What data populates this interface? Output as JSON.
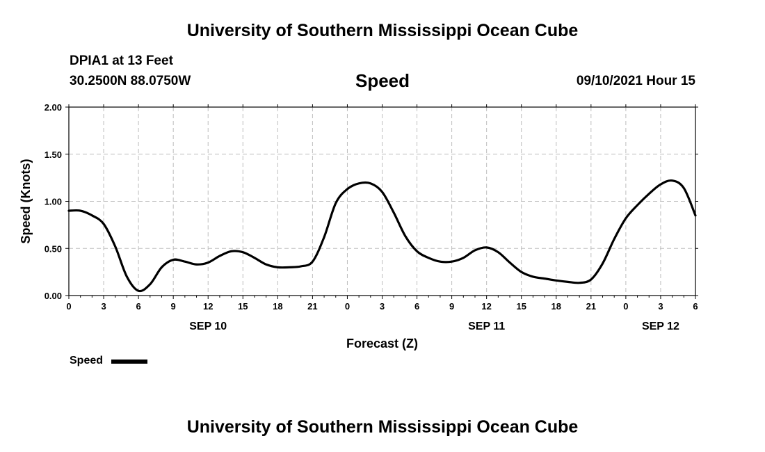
{
  "header": {
    "title_top": "University of Southern Mississippi Ocean Cube",
    "station": "DPIA1 at 13 Feet",
    "coords": "30.2500N  88.0750W",
    "variable": "Speed",
    "issued": "09/10/2021 Hour 15"
  },
  "footer": {
    "title_bottom": "University of Southern Mississippi Ocean Cube"
  },
  "legend": {
    "label": "Speed",
    "color": "#000000"
  },
  "chart_data": {
    "type": "line",
    "title": "Speed",
    "xlabel": "Forecast (Z)",
    "ylabel": "Speed (Knots)",
    "ylim": [
      0,
      2
    ],
    "xlim_hours": [
      0,
      54
    ],
    "grid": true,
    "legend_position": "bottom-left",
    "y_ticks": [
      "0.00",
      "0.50",
      "1.00",
      "1.50",
      "2.00"
    ],
    "y_tick_values": [
      0,
      0.5,
      1.0,
      1.5,
      2.0
    ],
    "x_ticks": [
      {
        "hour": 0,
        "label": "0"
      },
      {
        "hour": 3,
        "label": "3"
      },
      {
        "hour": 6,
        "label": "6"
      },
      {
        "hour": 9,
        "label": "9"
      },
      {
        "hour": 12,
        "label": "12"
      },
      {
        "hour": 15,
        "label": "15"
      },
      {
        "hour": 18,
        "label": "18"
      },
      {
        "hour": 21,
        "label": "21"
      },
      {
        "hour": 24,
        "label": "0"
      },
      {
        "hour": 27,
        "label": "3"
      },
      {
        "hour": 30,
        "label": "6"
      },
      {
        "hour": 33,
        "label": "9"
      },
      {
        "hour": 36,
        "label": "12"
      },
      {
        "hour": 39,
        "label": "15"
      },
      {
        "hour": 42,
        "label": "18"
      },
      {
        "hour": 45,
        "label": "21"
      },
      {
        "hour": 48,
        "label": "0"
      },
      {
        "hour": 51,
        "label": "3"
      },
      {
        "hour": 54,
        "label": "6"
      }
    ],
    "day_labels": [
      {
        "hour": 12,
        "label": "SEP 10"
      },
      {
        "hour": 36,
        "label": "SEP 11"
      },
      {
        "hour": 51,
        "label": "SEP 12"
      }
    ],
    "series": [
      {
        "name": "Speed",
        "color": "#000000",
        "x": [
          0,
          1,
          2,
          3,
          4,
          5,
          6,
          7,
          8,
          9,
          10,
          11,
          12,
          13,
          14,
          15,
          16,
          17,
          18,
          19,
          20,
          21,
          22,
          23,
          24,
          25,
          26,
          27,
          28,
          29,
          30,
          31,
          32,
          33,
          34,
          35,
          36,
          37,
          38,
          39,
          40,
          41,
          42,
          43,
          44,
          45,
          46,
          47,
          48,
          49,
          50,
          51,
          52,
          53,
          54
        ],
        "values": [
          0.9,
          0.9,
          0.85,
          0.76,
          0.52,
          0.2,
          0.05,
          0.12,
          0.3,
          0.38,
          0.36,
          0.33,
          0.35,
          0.42,
          0.47,
          0.46,
          0.4,
          0.33,
          0.3,
          0.3,
          0.31,
          0.36,
          0.62,
          0.98,
          1.13,
          1.19,
          1.19,
          1.1,
          0.88,
          0.63,
          0.47,
          0.4,
          0.36,
          0.36,
          0.4,
          0.48,
          0.51,
          0.46,
          0.35,
          0.25,
          0.2,
          0.18,
          0.16,
          0.145,
          0.135,
          0.17,
          0.34,
          0.6,
          0.82,
          0.96,
          1.08,
          1.18,
          1.22,
          1.14,
          0.85
        ]
      }
    ]
  }
}
